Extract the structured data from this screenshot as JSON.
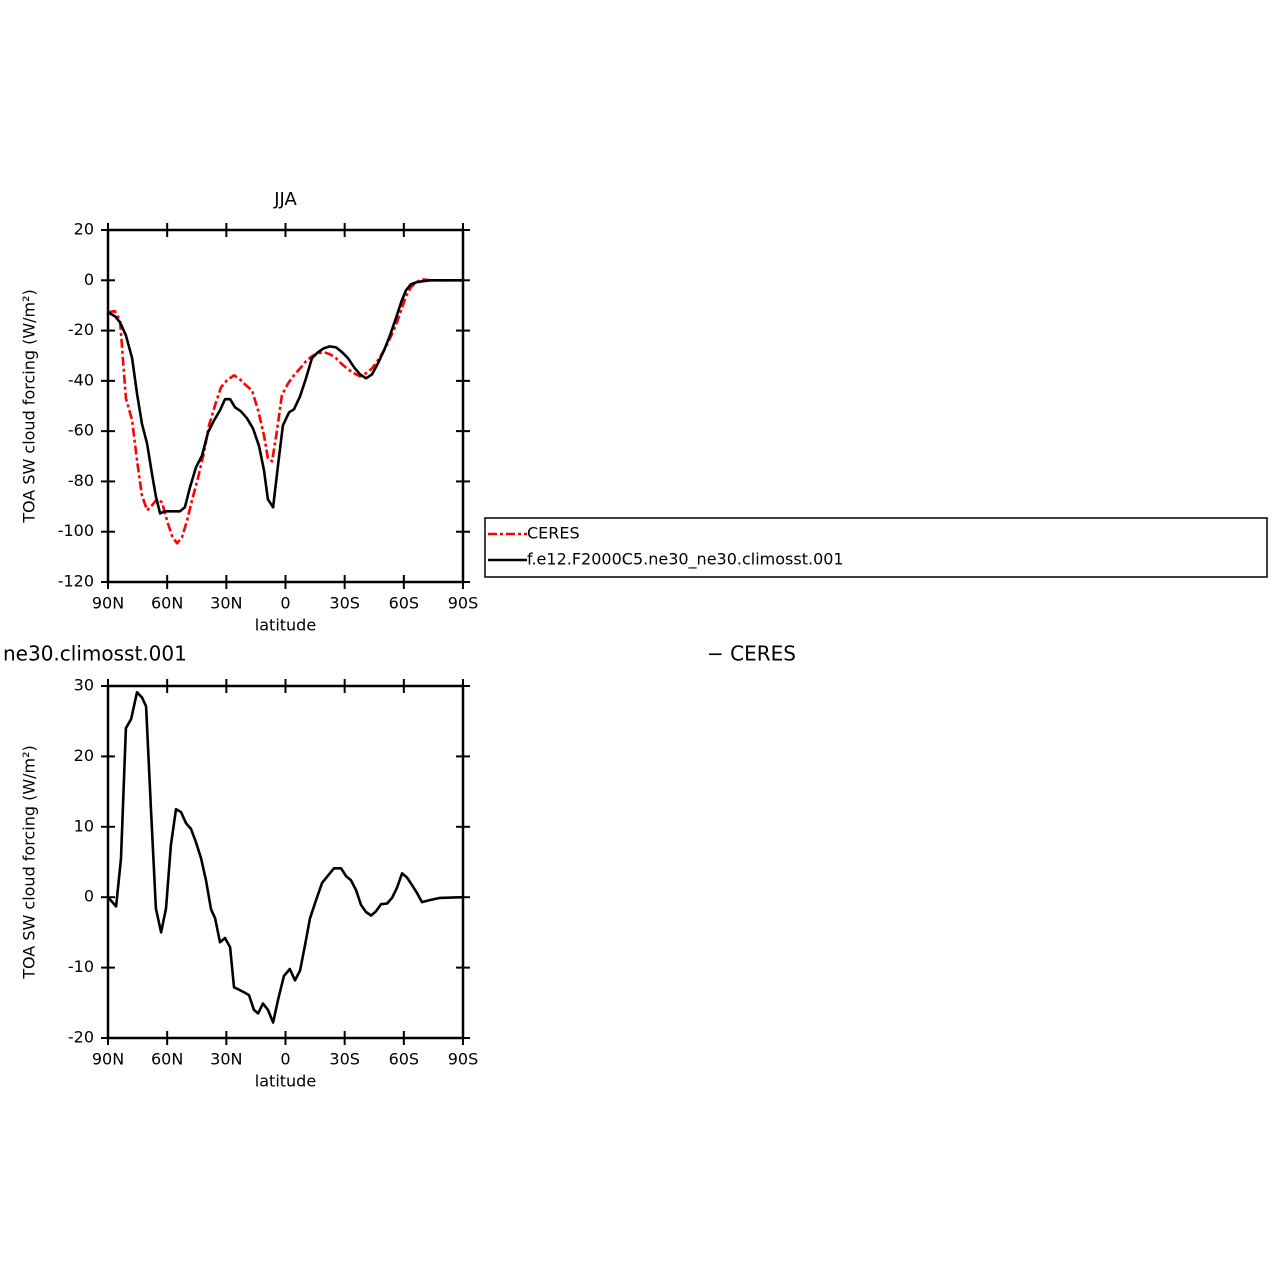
{
  "chart_data": [
    {
      "type": "line",
      "title": "JJA",
      "xlabel": "latitude",
      "ylabel": "TOA SW cloud forcing (W/m²)",
      "xlim": [
        90,
        -90
      ],
      "xticks": [
        {
          "value": 90,
          "label": "90N"
        },
        {
          "value": 60,
          "label": "60N"
        },
        {
          "value": 30,
          "label": "30N"
        },
        0,
        {
          "value": -30,
          "label": "30S"
        },
        {
          "value": -60,
          "label": "60S"
        },
        {
          "value": -90,
          "label": "90S"
        }
      ],
      "ylim": [
        -120,
        20
      ],
      "yticks": [
        20,
        0,
        -20,
        -40,
        -60,
        -80,
        -100,
        -120
      ],
      "legend": "right",
      "series": [
        {
          "name": "CERES",
          "color": "#ff0000",
          "style": "dashed",
          "x": [
            90,
            86.5,
            83.9,
            80.9,
            77.8,
            75.3,
            72.8,
            70.2,
            67.7,
            65.2,
            62.6,
            60.1,
            57.5,
            55,
            52.5,
            49.9,
            47.4,
            44.4,
            41.3,
            38.8,
            35.7,
            32.7,
            29.7,
            26.1,
            23.1,
            20,
            17,
            13.9,
            10.9,
            8.9,
            6.8,
            4.3,
            1.8,
            -1.3,
            -4.3,
            -7.4,
            -10.4,
            -13.4,
            -16.5,
            -19.5,
            -22.5,
            -25.6,
            -28.7,
            -31.7,
            -34.8,
            -37.8,
            -40.8,
            -43.9,
            -46.9,
            -50,
            -53,
            -56,
            -58.6,
            -61.1,
            -63.6,
            -66.2,
            -69.2,
            -73.3,
            -90
          ],
          "values": [
            -12.7,
            -12.3,
            -15.9,
            -46.9,
            -55.7,
            -71.6,
            -85.5,
            -91.5,
            -89.5,
            -87.1,
            -88.3,
            -95.5,
            -101.8,
            -104.6,
            -102.2,
            -95.5,
            -87.5,
            -78.8,
            -68.4,
            -57.7,
            -49.7,
            -42.6,
            -39.8,
            -37.8,
            -39.4,
            -41.8,
            -43.8,
            -51.7,
            -61.7,
            -70.8,
            -72,
            -59.7,
            -45.7,
            -41,
            -37.8,
            -35,
            -32.2,
            -30.2,
            -29,
            -28.6,
            -29.4,
            -31,
            -33.4,
            -35.4,
            -37,
            -38.2,
            -37,
            -35,
            -31.8,
            -27.8,
            -23.1,
            -17.9,
            -11.9,
            -6.4,
            -2.8,
            -0.8,
            0.4,
            0,
            0
          ]
        },
        {
          "name": "f.e12.F2000C5.ne30_ne30.climosst.001",
          "color": "#000000",
          "style": "solid",
          "x": [
            90,
            86.5,
            83.9,
            80.9,
            77.8,
            75.3,
            72.8,
            70.2,
            67.7,
            65.7,
            63.6,
            61.1,
            57.5,
            53.5,
            51,
            48.4,
            45.4,
            42.3,
            39.3,
            36.2,
            33.2,
            30.7,
            28.1,
            25.6,
            22.6,
            19.5,
            16.5,
            13.4,
            10.9,
            8.9,
            6.3,
            3.8,
            1.3,
            -1.8,
            -4.3,
            -7.4,
            -10.4,
            -13.4,
            -16.5,
            -19.5,
            -22.5,
            -25.6,
            -28.7,
            -31.7,
            -34.8,
            -37.8,
            -40.8,
            -43.9,
            -46.9,
            -50,
            -53,
            -56,
            -58.6,
            -61.1,
            -63.6,
            -66.2,
            -69.2,
            -73.3,
            -90
          ],
          "values": [
            -12.7,
            -14.3,
            -16.7,
            -21.9,
            -31,
            -45,
            -57,
            -65,
            -77,
            -86,
            -92.7,
            -91.9,
            -91.9,
            -91.9,
            -90.3,
            -82.3,
            -74.4,
            -69.6,
            -60.5,
            -55.7,
            -51.7,
            -47.3,
            -47.3,
            -50.5,
            -52.1,
            -54.9,
            -58.9,
            -66,
            -75.6,
            -87.1,
            -90.3,
            -73.6,
            -57.7,
            -52.5,
            -51.3,
            -46.1,
            -39,
            -31,
            -28.6,
            -27,
            -26.3,
            -26.7,
            -28.6,
            -31,
            -34.6,
            -37.4,
            -39,
            -37.4,
            -33,
            -27.8,
            -21.9,
            -15.1,
            -8.8,
            -4,
            -1.6,
            -0.8,
            -0.4,
            0,
            0
          ]
        }
      ]
    },
    {
      "type": "line",
      "title_left": "ne30.climosst.001",
      "title_right": "− CERES",
      "xlabel": "latitude",
      "ylabel": "TOA SW cloud forcing (W/m²)",
      "xlim": [
        90,
        -90
      ],
      "xticks": [
        {
          "value": 90,
          "label": "90N"
        },
        {
          "value": 60,
          "label": "60N"
        },
        {
          "value": 30,
          "label": "30N"
        },
        0,
        {
          "value": -30,
          "label": "30S"
        },
        {
          "value": -60,
          "label": "60S"
        },
        {
          "value": -90,
          "label": "90S"
        }
      ],
      "ylim": [
        -20,
        30
      ],
      "yticks": [
        30,
        20,
        10,
        0,
        -10,
        -20
      ],
      "series": [
        {
          "color": "#000000",
          "style": "solid",
          "x": [
            90,
            85.9,
            83.4,
            80.9,
            78.3,
            75.3,
            72.8,
            70.7,
            68.2,
            65.7,
            63.1,
            60.6,
            58.1,
            55.5,
            53,
            50.4,
            47.9,
            45.4,
            42.8,
            40.3,
            37.8,
            35.7,
            33.2,
            30.7,
            28.1,
            26.1,
            23.1,
            20.5,
            18.5,
            16,
            13.9,
            11.4,
            8.9,
            6.3,
            3.8,
            0.8,
            -2.2,
            -4.8,
            -7.4,
            -9.9,
            -12.4,
            -15.5,
            -18.5,
            -21.6,
            -24.6,
            -28.2,
            -30.7,
            -33.2,
            -35.8,
            -38.3,
            -40.8,
            -43.4,
            -45.9,
            -48.4,
            -51.5,
            -54,
            -56.5,
            -59.1,
            -61.6,
            -64.2,
            -66.7,
            -69.2,
            -73.3,
            -78.4,
            -90
          ],
          "values": [
            0,
            -1.3,
            5.5,
            24,
            25.3,
            29.1,
            28.4,
            27.1,
            12.4,
            -1.6,
            -5,
            -1.6,
            7.4,
            12.5,
            12.1,
            10.5,
            9.7,
            7.8,
            5.5,
            2.4,
            -1.7,
            -3,
            -6.4,
            -5.8,
            -7.1,
            -12.8,
            -13.2,
            -13.6,
            -13.9,
            -16,
            -16.5,
            -15.1,
            -16,
            -17.8,
            -14.6,
            -11.2,
            -10.2,
            -11.8,
            -10.4,
            -6.8,
            -3,
            -0.4,
            2,
            3.1,
            4.1,
            4.1,
            3,
            2.4,
            1,
            -1.1,
            -2.1,
            -2.6,
            -2,
            -1,
            -0.9,
            -0.1,
            1.3,
            3.4,
            2.8,
            1.7,
            0.6,
            -0.7,
            -0.4,
            -0.1,
            0
          ]
        }
      ]
    }
  ]
}
